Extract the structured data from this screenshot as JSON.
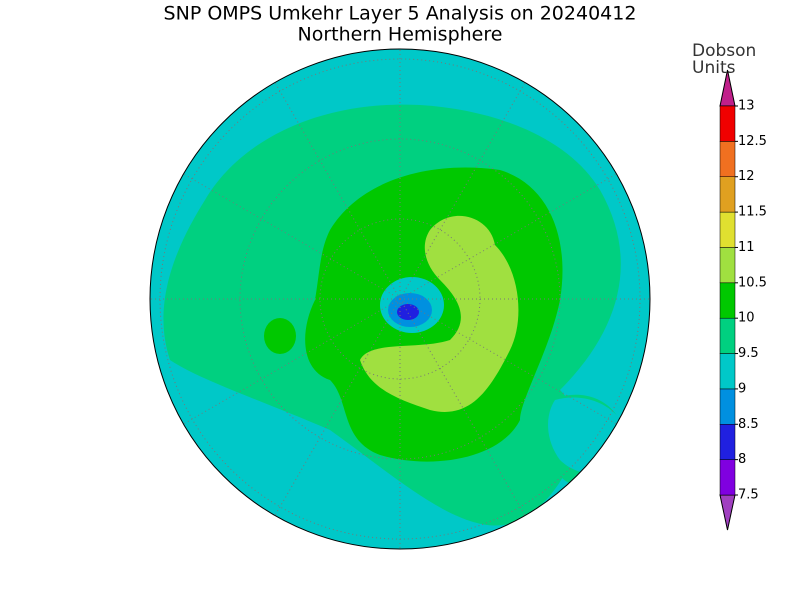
{
  "header": {
    "title": "SNP OMPS Umkehr Layer 5 Analysis on 20240412",
    "subtitle": "Northern Hemisphere"
  },
  "colorbar": {
    "unit_label": [
      "Dobson",
      "Units"
    ],
    "ticks": [
      7.5,
      8,
      8.5,
      9,
      9.5,
      10,
      10.5,
      11,
      11.5,
      12,
      12.5,
      13
    ],
    "colors": [
      "#a040c0",
      "#8000e0",
      "#2020e0",
      "#0090e0",
      "#00c8c8",
      "#00d080",
      "#00c800",
      "#a0e040",
      "#e0e030",
      "#e0a020",
      "#f07020",
      "#f00000",
      "#c0208a"
    ]
  }
}
